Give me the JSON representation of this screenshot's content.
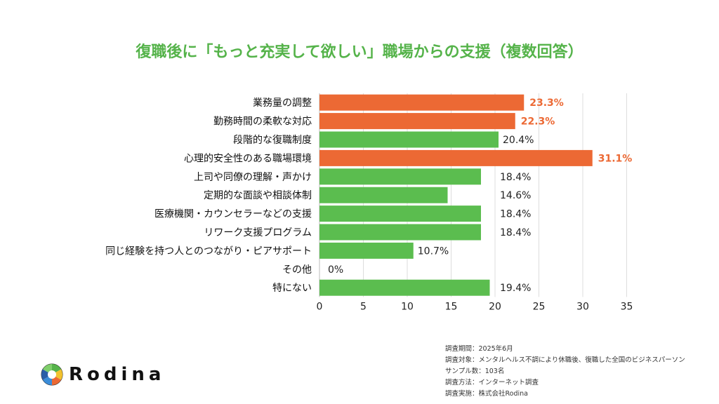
{
  "chart_data": {
    "type": "bar",
    "orientation": "horizontal",
    "title": "復職後に「もっと充実して欲しい」職場からの支援（複数回答）",
    "categories": [
      "業務量の調整",
      "勤務時間の柔軟な対応",
      "段階的な復職制度",
      "心理的安全性のある職場環境",
      "上司や同僚の理解・声かけ",
      "定期的な面談や相談体制",
      "医療機関・カウンセラーなどの支援",
      "リワーク支援プログラム",
      "同じ経験を持つ人とのつながり・ピアサポート",
      "その他",
      "特にない"
    ],
    "values": [
      23.3,
      22.3,
      20.4,
      31.1,
      18.4,
      14.6,
      18.4,
      18.4,
      10.7,
      0,
      19.4
    ],
    "value_labels": [
      "23.3%",
      "22.3%",
      "20.4%",
      "31.1%",
      "18.4%",
      "14.6%",
      "18.4%",
      "18.4%",
      "10.7%",
      "0%",
      "19.4%"
    ],
    "highlighted": [
      true,
      true,
      false,
      true,
      false,
      false,
      false,
      false,
      false,
      false,
      false
    ],
    "xlim": [
      0,
      35
    ],
    "xticks": [
      "0",
      "5",
      "10",
      "15",
      "20",
      "25",
      "30",
      "35"
    ],
    "grid": true,
    "colors": {
      "highlight": "#ec6934",
      "normal": "#5bbd4f",
      "title": "#55b34a",
      "grid": "#dddddd"
    }
  },
  "notes": [
    "調査期間：2025年6月",
    "調査対象：メンタルヘルス不調により休職後、復職した全国のビジネスパーソン",
    "サンプル数：103名",
    "調査方法：インターネット調査",
    "調査実施：株式会社Rodina"
  ],
  "logo": {
    "text": "Rodina",
    "icon": "camera-aperture-icon"
  }
}
